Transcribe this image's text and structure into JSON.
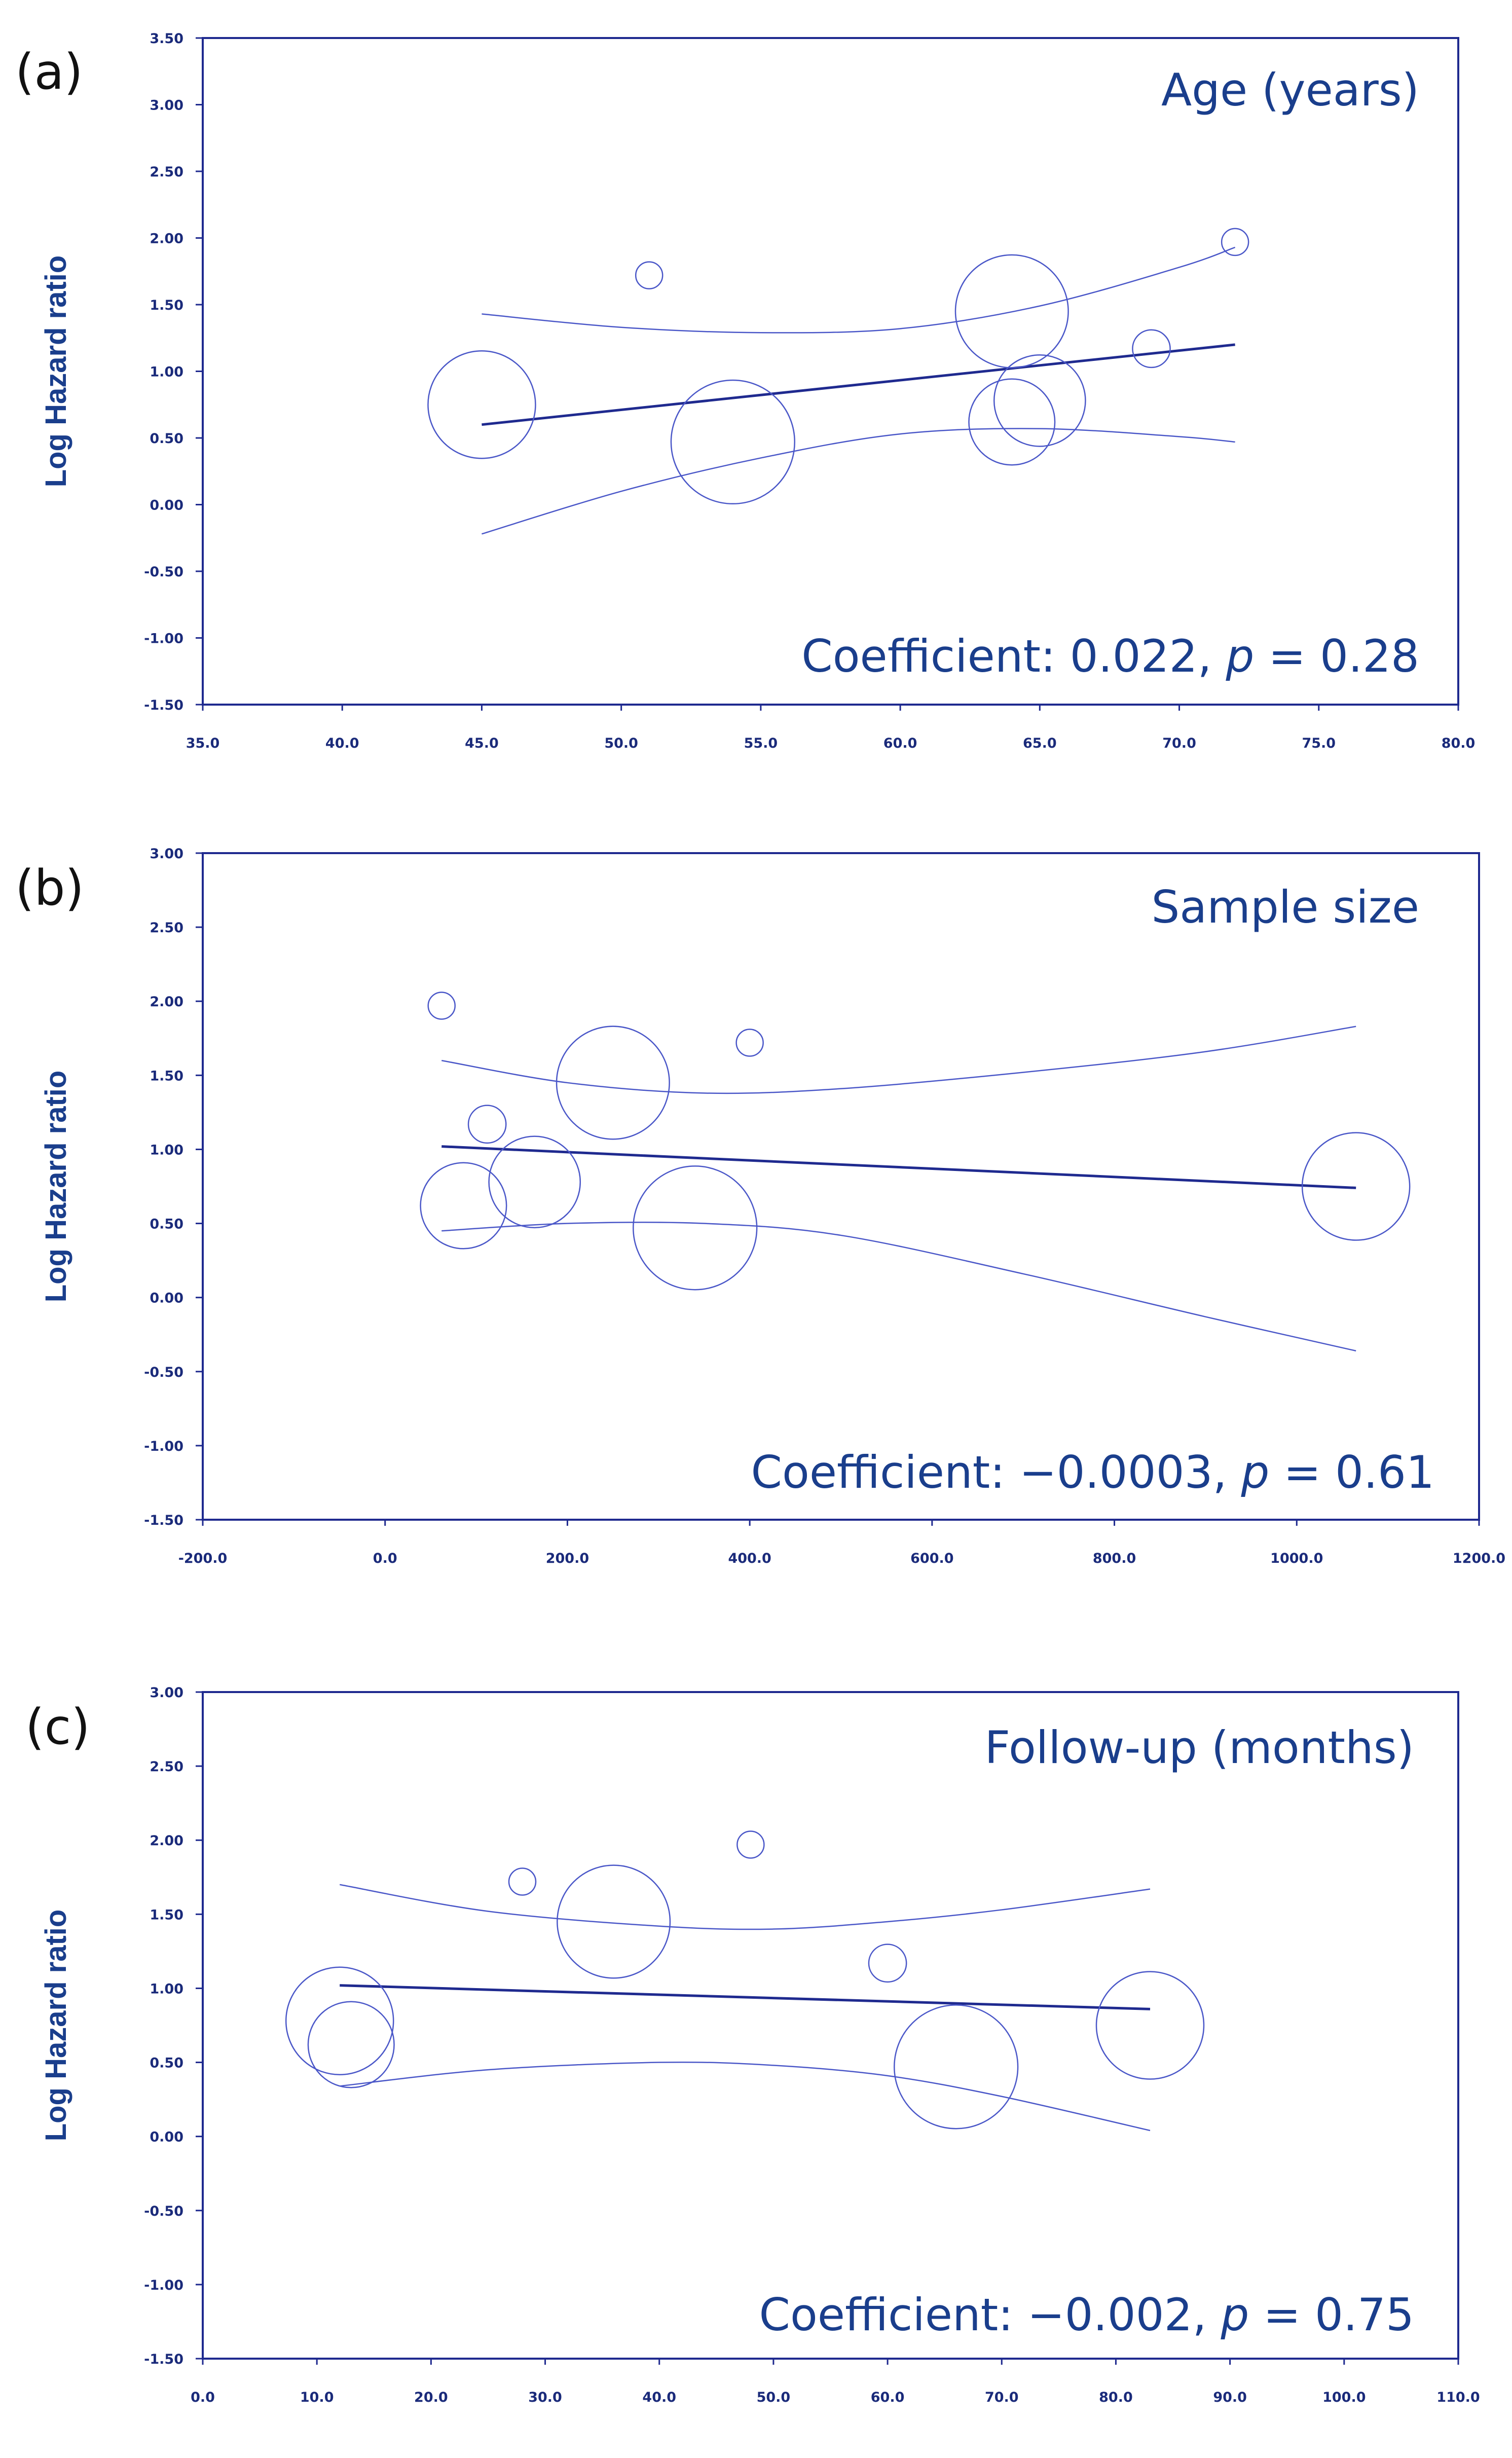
{
  "chart_data": [
    {
      "type": "scatter",
      "panel_label": "(a)",
      "variable_label": "Age (years)",
      "ylabel": "Log Hazard ratio",
      "xlabel": "",
      "xlim": [
        35.0,
        80.0
      ],
      "ylim": [
        -1.5,
        3.5
      ],
      "x_ticks": [
        "35.0",
        "40.0",
        "45.0",
        "50.0",
        "55.0",
        "60.0",
        "65.0",
        "70.0",
        "75.0",
        "80.0"
      ],
      "y_ticks": [
        "3.50",
        "3.00",
        "2.50",
        "2.00",
        "1.50",
        "1.00",
        "0.50",
        "0.00",
        "-0.50",
        "-1.00",
        "-1.50"
      ],
      "coefficient_prefix": "Coefficient: 0.022, ",
      "p_symbol": "p",
      "p_value_text": " = 0.28",
      "points": [
        {
          "x": 45.0,
          "y": 0.75,
          "weight": 1.0
        },
        {
          "x": 51.0,
          "y": 1.72,
          "weight": 0.25
        },
        {
          "x": 54.0,
          "y": 0.47,
          "weight": 1.15
        },
        {
          "x": 64.0,
          "y": 1.45,
          "weight": 1.05
        },
        {
          "x": 64.0,
          "y": 0.62,
          "weight": 0.8
        },
        {
          "x": 65.0,
          "y": 0.78,
          "weight": 0.85
        },
        {
          "x": 69.0,
          "y": 1.17,
          "weight": 0.35
        },
        {
          "x": 72.0,
          "y": 1.97,
          "weight": 0.25
        }
      ],
      "regression": {
        "x": [
          45.0,
          72.0
        ],
        "y": [
          0.6,
          1.2
        ]
      },
      "ci_upper": {
        "x": [
          45.0,
          50.0,
          55.0,
          60.0,
          65.0,
          70.0,
          72.0
        ],
        "y": [
          1.43,
          1.33,
          1.29,
          1.32,
          1.49,
          1.78,
          1.93
        ]
      },
      "ci_lower": {
        "x": [
          45.0,
          50.0,
          55.0,
          60.0,
          65.0,
          70.0,
          72.0
        ],
        "y": [
          -0.22,
          0.1,
          0.35,
          0.53,
          0.57,
          0.51,
          0.47
        ]
      }
    },
    {
      "type": "scatter",
      "panel_label": "(b)",
      "variable_label": "Sample size",
      "ylabel": "Log Hazard ratio",
      "xlabel": "",
      "xlim": [
        -200.0,
        1200.0
      ],
      "ylim": [
        -1.5,
        3.0
      ],
      "x_ticks": [
        "-200.0",
        "0.0",
        "200.0",
        "400.0",
        "600.0",
        "800.0",
        "1000.0",
        "1200.0"
      ],
      "y_ticks": [
        "3.00",
        "2.50",
        "2.00",
        "1.50",
        "1.00",
        "0.50",
        "0.00",
        "-0.50",
        "-1.00",
        "-1.50"
      ],
      "coefficient_prefix": "Coefficient: −0.0003, ",
      "p_symbol": "p",
      "p_value_text": " = 0.61",
      "points": [
        {
          "x": 62.0,
          "y": 1.97,
          "weight": 0.25
        },
        {
          "x": 112.0,
          "y": 1.17,
          "weight": 0.35
        },
        {
          "x": 86.0,
          "y": 0.62,
          "weight": 0.8
        },
        {
          "x": 164.0,
          "y": 0.78,
          "weight": 0.85
        },
        {
          "x": 250.0,
          "y": 1.45,
          "weight": 1.05
        },
        {
          "x": 340.0,
          "y": 0.47,
          "weight": 1.15
        },
        {
          "x": 400.0,
          "y": 1.72,
          "weight": 0.25
        },
        {
          "x": 1065.0,
          "y": 0.75,
          "weight": 1.0
        }
      ],
      "regression": {
        "x": [
          62.0,
          1065.0
        ],
        "y": [
          1.02,
          0.74
        ]
      },
      "ci_upper": {
        "x": [
          62.0,
          200.0,
          350.0,
          500.0,
          700.0,
          900.0,
          1065.0
        ],
        "y": [
          1.6,
          1.45,
          1.38,
          1.41,
          1.52,
          1.66,
          1.83
        ]
      },
      "ci_lower": {
        "x": [
          62.0,
          200.0,
          350.0,
          500.0,
          700.0,
          900.0,
          1065.0
        ],
        "y": [
          0.45,
          0.5,
          0.5,
          0.42,
          0.16,
          -0.13,
          -0.36
        ]
      }
    },
    {
      "type": "scatter",
      "panel_label": "(c)",
      "variable_label": "Follow-up (months)",
      "ylabel": "Log Hazard ratio",
      "xlabel": "",
      "xlim": [
        0.0,
        110.0
      ],
      "ylim": [
        -1.5,
        3.0
      ],
      "x_ticks": [
        "0.0",
        "10.0",
        "20.0",
        "30.0",
        "40.0",
        "50.0",
        "60.0",
        "70.0",
        "80.0",
        "90.0",
        "100.0",
        "110.0"
      ],
      "y_ticks": [
        "3.00",
        "2.50",
        "2.00",
        "1.50",
        "1.00",
        "0.50",
        "0.00",
        "-0.50",
        "-1.00",
        "-1.50"
      ],
      "coefficient_prefix": "Coefficient: −0.002, ",
      "p_symbol": "p",
      "p_value_text": " = 0.75",
      "points": [
        {
          "x": 12.0,
          "y": 0.78,
          "weight": 1.0
        },
        {
          "x": 13.0,
          "y": 0.62,
          "weight": 0.8
        },
        {
          "x": 28.0,
          "y": 1.72,
          "weight": 0.25
        },
        {
          "x": 36.0,
          "y": 1.45,
          "weight": 1.05
        },
        {
          "x": 48.0,
          "y": 1.97,
          "weight": 0.25
        },
        {
          "x": 60.0,
          "y": 1.17,
          "weight": 0.35
        },
        {
          "x": 66.0,
          "y": 0.47,
          "weight": 1.15
        },
        {
          "x": 83.0,
          "y": 0.75,
          "weight": 1.0
        }
      ],
      "regression": {
        "x": [
          12.0,
          83.0
        ],
        "y": [
          1.02,
          0.86
        ]
      },
      "ci_upper": {
        "x": [
          12.0,
          25.0,
          40.0,
          50.0,
          60.0,
          70.0,
          83.0
        ],
        "y": [
          1.7,
          1.52,
          1.42,
          1.4,
          1.45,
          1.53,
          1.67
        ]
      },
      "ci_lower": {
        "x": [
          12.0,
          25.0,
          40.0,
          50.0,
          60.0,
          70.0,
          83.0
        ],
        "y": [
          0.34,
          0.45,
          0.5,
          0.48,
          0.41,
          0.27,
          0.04
        ]
      }
    }
  ]
}
